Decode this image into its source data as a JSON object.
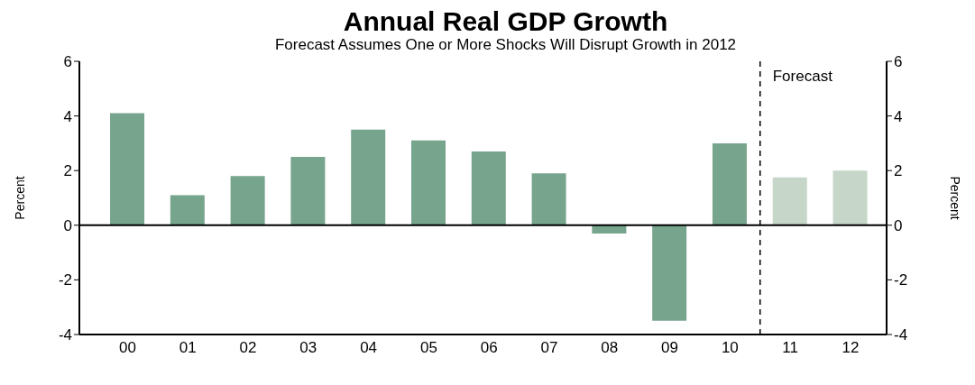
{
  "chart_data": {
    "type": "bar",
    "title": "Annual Real GDP Growth",
    "subtitle": "Forecast Assumes One or More Shocks Will Disrupt Growth in 2012",
    "x": [
      2000,
      2001,
      2002,
      2003,
      2004,
      2005,
      2006,
      2007,
      2008,
      2009,
      2010,
      2011,
      2012
    ],
    "values": [
      4.1,
      1.1,
      1.8,
      2.5,
      3.5,
      3.1,
      2.7,
      1.9,
      -0.3,
      -3.5,
      3.0,
      1.75,
      2.0
    ],
    "colors": [
      "#77a48c",
      "#77a48c",
      "#77a48c",
      "#77a48c",
      "#77a48c",
      "#77a48c",
      "#77a48c",
      "#77a48c",
      "#77a48c",
      "#77a48c",
      "#77a48c",
      "#c6d6c8",
      "#c6d6c8"
    ],
    "xlim": [
      1999.2,
      2012.6
    ],
    "xticks": [
      {
        "value": 2000,
        "label": "00"
      },
      {
        "value": 2001,
        "label": "01"
      },
      {
        "value": 2002,
        "label": "02"
      },
      {
        "value": 2003,
        "label": "03"
      },
      {
        "value": 2004,
        "label": "04"
      },
      {
        "value": 2005,
        "label": "05"
      },
      {
        "value": 2006,
        "label": "06"
      },
      {
        "value": 2007,
        "label": "07"
      },
      {
        "value": 2008,
        "label": "08"
      },
      {
        "value": 2009,
        "label": "09"
      },
      {
        "value": 2010,
        "label": "10"
      },
      {
        "value": 2011,
        "label": "11"
      },
      {
        "value": 2012,
        "label": "12"
      }
    ],
    "ylabel": "Percent",
    "y2label": "Percent",
    "ylim": [
      -4,
      6
    ],
    "yticks": [
      -4,
      -2,
      0,
      2,
      4,
      6
    ],
    "y2lim": [
      -4,
      6
    ],
    "y2ticks": [
      -4,
      -2,
      0,
      2,
      4,
      6
    ],
    "ref_lines": [
      {
        "axis": "x",
        "value": 2010.5,
        "label": "Forecast",
        "line_style": "dashed",
        "color": "#000000"
      },
      {
        "axis": "y",
        "value": 0,
        "color": "#000000",
        "line_style": "solid"
      }
    ],
    "grid": false,
    "legend": false
  }
}
